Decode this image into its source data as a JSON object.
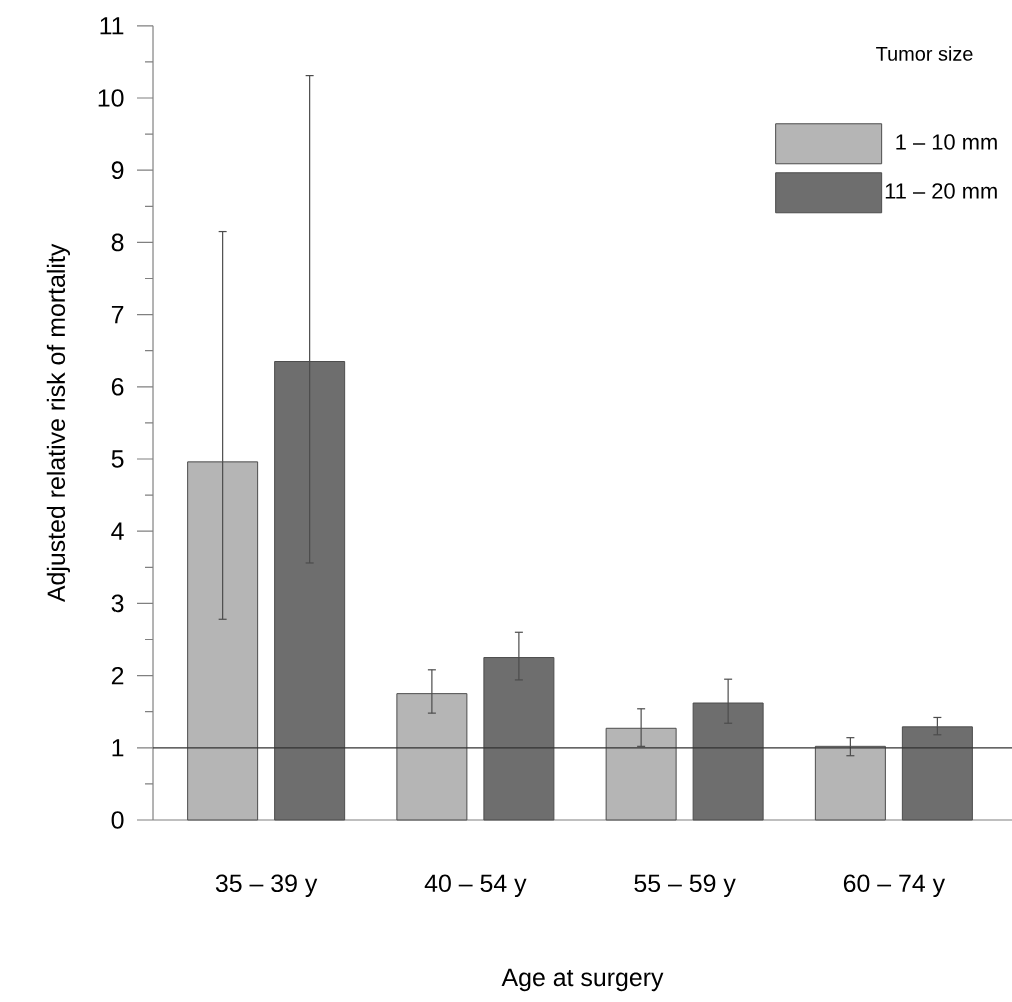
{
  "chart_data": {
    "type": "bar",
    "xlabel": "Age at surgery",
    "ylabel": "Adjusted relative risk of mortality",
    "legend_title": "Tumor size",
    "categories": [
      "35 – 39 y",
      "40 – 54 y",
      "55 – 59 y",
      "60 – 74 y"
    ],
    "series": [
      {
        "name": "1 – 10 mm",
        "color": "#b5b5b5",
        "values": [
          4.96,
          1.75,
          1.27,
          1.02
        ],
        "errors": [
          [
            2.78,
            8.15
          ],
          [
            1.48,
            2.08
          ],
          [
            1.02,
            1.54
          ],
          [
            0.89,
            1.14
          ]
        ]
      },
      {
        "name": "11 – 20 mm",
        "color": "#6e6e6e",
        "values": [
          6.35,
          2.25,
          1.62,
          1.29
        ],
        "errors": [
          [
            3.56,
            10.31
          ],
          [
            1.94,
            2.6
          ],
          [
            1.34,
            1.95
          ],
          [
            1.18,
            1.42
          ]
        ]
      }
    ],
    "ylim": [
      0,
      11
    ],
    "yticks": [
      0,
      1,
      2,
      3,
      4,
      5,
      6,
      7,
      8,
      9,
      10,
      11
    ],
    "ref_lines": [
      {
        "axis": "y",
        "value": 1,
        "color": "#333333"
      }
    ],
    "legend": "top right",
    "grid": false
  }
}
